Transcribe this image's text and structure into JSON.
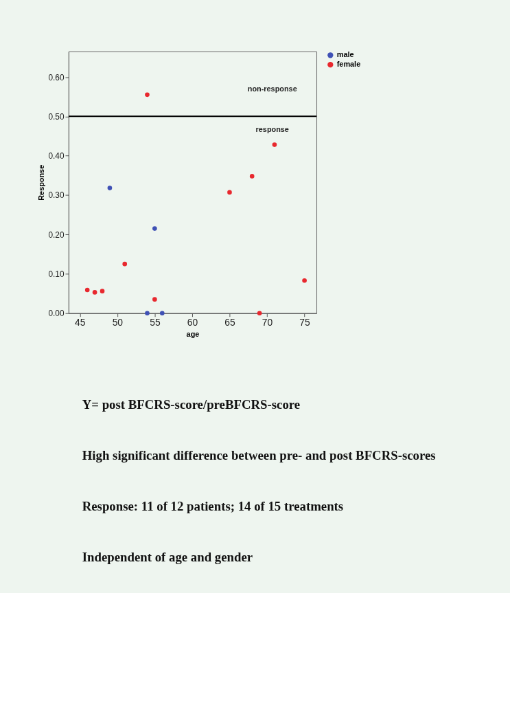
{
  "chart_data": {
    "type": "scatter",
    "xlabel": "age",
    "ylabel": "Response",
    "series": [
      {
        "name": "male",
        "color": "#3f51b5",
        "x": [
          49,
          55,
          54,
          56
        ],
        "values": [
          0.318,
          0.215,
          0,
          0
        ]
      },
      {
        "name": "female",
        "color": "#e8282e",
        "x": [
          54,
          65,
          68,
          71,
          46,
          47,
          48,
          51,
          55,
          69,
          75
        ],
        "values": [
          0.555,
          0.307,
          0.348,
          0.428,
          0.059,
          0.053,
          0.056,
          0.125,
          0.035,
          0,
          0.083
        ]
      }
    ],
    "xlim": [
      43.5,
      76.6
    ],
    "xticks": [
      45,
      50,
      55,
      60,
      65,
      70,
      75
    ],
    "ylim": [
      0,
      0.665
    ],
    "yticks": [
      {
        "value": 0,
        "label": "0.00"
      },
      {
        "value": 0.1,
        "label": "0.10"
      },
      {
        "value": 0.2,
        "label": "0.20"
      },
      {
        "value": 0.3,
        "label": "0.30"
      },
      {
        "value": 0.4,
        "label": "0.40"
      },
      {
        "value": 0.5,
        "label": "0.50"
      },
      {
        "value": 0.6,
        "label": "0.60"
      }
    ],
    "ref_lines": [
      {
        "axis": "y",
        "value": 0.5,
        "color": "#000000"
      }
    ],
    "annotations": [
      "non-response",
      "response",
      "Y= post BFCRS-score/preBFCRS-score",
      "High significant difference between pre- and post BFCRS-scores",
      "Response: 11 of 12 patients; 14 of 15 treatments",
      "Independent of age and gender"
    ],
    "legend": "top right",
    "marker": "circle",
    "grid": false
  }
}
